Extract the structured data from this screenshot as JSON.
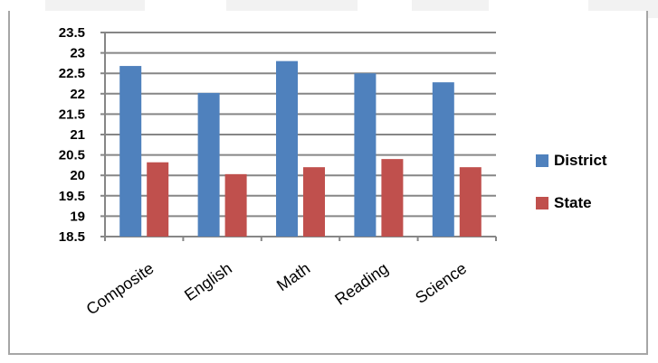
{
  "chart_data": {
    "type": "bar",
    "title": "",
    "categories": [
      "Composite",
      "English",
      "Math",
      "Reading",
      "Science"
    ],
    "series": [
      {
        "name": "District",
        "color": "#4f81bd",
        "values": [
          22.68,
          22.02,
          22.8,
          22.5,
          22.28
        ]
      },
      {
        "name": "State",
        "color": "#c0504d",
        "values": [
          20.32,
          20.03,
          20.2,
          20.4,
          20.2
        ]
      }
    ],
    "ylim": [
      18.5,
      23.5
    ],
    "yticks": [
      "18.5",
      "19",
      "19.5",
      "20",
      "20.5",
      "21",
      "21.5",
      "22",
      "22.5",
      "23",
      "23.5"
    ],
    "grid": true,
    "legend_position": "right",
    "xlabel": "",
    "ylabel": ""
  }
}
